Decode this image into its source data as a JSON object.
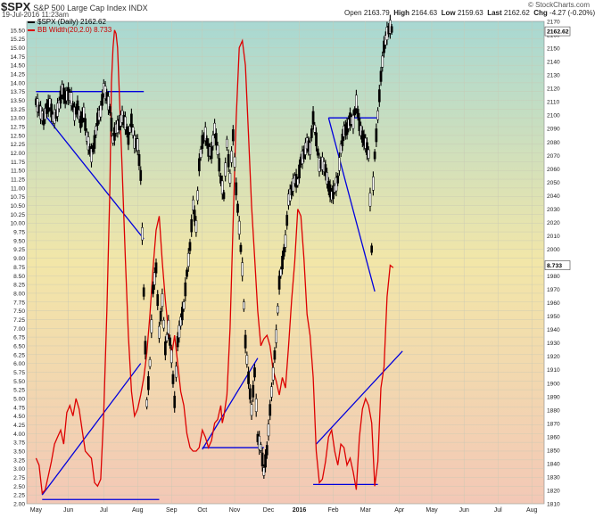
{
  "header": {
    "symbol": "$SPX",
    "name": "S&P 500 Large Cap Index",
    "exchange": "INDX",
    "datetime": "19-Jul-2016 11:23am",
    "open_label": "Open",
    "open": "2163.79",
    "high_label": "High",
    "high": "2164.63",
    "low_label": "Low",
    "low": "2159.63",
    "last_label": "Last",
    "last": "2162.62",
    "chg_label": "Chg",
    "chg": "-4.27 (-0.20%)",
    "watermark": "© StockCharts.com"
  },
  "colors": {
    "bg_top": "#a8d8d2",
    "bg_mid": "#f2e6a8",
    "bg_bottom": "#f3c8b6",
    "price": "#000000",
    "bbw": "#dd0000",
    "trend": "#0000dd",
    "grid": "#c8c8b4"
  },
  "chart_data": {
    "type": "line",
    "title": "$SPX S&P 500 Large Cap Index INDX",
    "series": [
      {
        "name": "$SPX (Daily) 2162.62",
        "axis": "right",
        "style": "ohlc-bars",
        "values": [
          [
            0,
            2110
          ],
          [
            3,
            2102
          ],
          [
            5,
            2097
          ],
          [
            7,
            2105
          ],
          [
            9,
            2109
          ],
          [
            11,
            2098
          ],
          [
            13,
            2100
          ],
          [
            15,
            2108
          ],
          [
            17,
            2119
          ],
          [
            19,
            2113
          ],
          [
            21,
            2116
          ],
          [
            23,
            2112
          ],
          [
            25,
            2101
          ],
          [
            27,
            2106
          ],
          [
            29,
            2095
          ],
          [
            31,
            2102
          ],
          [
            33,
            2084
          ],
          [
            35,
            2074
          ],
          [
            36,
            2070
          ],
          [
            38,
            2080
          ],
          [
            40,
            2097
          ],
          [
            42,
            2103
          ],
          [
            44,
            2120
          ],
          [
            46,
            2114
          ],
          [
            48,
            2104
          ],
          [
            50,
            2082
          ],
          [
            52,
            2090
          ],
          [
            54,
            2093
          ],
          [
            56,
            2099
          ],
          [
            58,
            2094
          ],
          [
            60,
            2083
          ],
          [
            62,
            2096
          ],
          [
            64,
            2080
          ],
          [
            66,
            2078
          ],
          [
            68,
            2055
          ],
          [
            70,
            1968
          ],
          [
            72,
            1885
          ],
          [
            74,
            1915
          ],
          [
            76,
            1970
          ],
          [
            78,
            1986
          ],
          [
            80,
            1938
          ],
          [
            82,
            1962
          ],
          [
            84,
            1926
          ],
          [
            86,
            1942
          ],
          [
            88,
            1920
          ],
          [
            90,
            1886
          ],
          [
            92,
            1931
          ],
          [
            94,
            1946
          ],
          [
            96,
            1958
          ],
          [
            98,
            1982
          ],
          [
            100,
            2002
          ],
          [
            102,
            2033
          ],
          [
            104,
            2017
          ],
          [
            106,
            2063
          ],
          [
            108,
            2080
          ],
          [
            110,
            2086
          ],
          [
            112,
            2074
          ],
          [
            114,
            2072
          ],
          [
            116,
            2090
          ],
          [
            118,
            2074
          ],
          [
            120,
            2052
          ],
          [
            122,
            2040
          ],
          [
            124,
            2079
          ],
          [
            126,
            2053
          ],
          [
            128,
            2085
          ],
          [
            130,
            2045
          ],
          [
            132,
            2016
          ],
          [
            134,
            1985
          ],
          [
            136,
            1931
          ],
          [
            138,
            1904
          ],
          [
            140,
            1880
          ],
          [
            142,
            1908
          ],
          [
            144,
            1859
          ],
          [
            146,
            1852
          ],
          [
            148,
            1834
          ],
          [
            150,
            1850
          ],
          [
            152,
            1880
          ],
          [
            154,
            1907
          ],
          [
            156,
            1935
          ],
          [
            158,
            1975
          ],
          [
            160,
            1990
          ],
          [
            162,
            2006
          ],
          [
            164,
            2037
          ],
          [
            166,
            2044
          ],
          [
            168,
            2052
          ],
          [
            170,
            2050
          ],
          [
            172,
            2066
          ],
          [
            174,
            2071
          ],
          [
            176,
            2079
          ],
          [
            178,
            2075
          ],
          [
            180,
            2098
          ],
          [
            182,
            2082
          ],
          [
            184,
            2063
          ],
          [
            186,
            2064
          ],
          [
            188,
            2059
          ],
          [
            190,
            2047
          ],
          [
            192,
            2040
          ],
          [
            194,
            2045
          ],
          [
            196,
            2052
          ],
          [
            198,
            2075
          ],
          [
            200,
            2088
          ],
          [
            202,
            2090
          ],
          [
            204,
            2097
          ],
          [
            206,
            2095
          ],
          [
            208,
            2110
          ],
          [
            210,
            2093
          ],
          [
            212,
            2084
          ],
          [
            214,
            2079
          ],
          [
            216,
            2071
          ],
          [
            217,
            2037
          ],
          [
            218,
            2000
          ],
          [
            219,
            2049
          ],
          [
            220,
            2070
          ],
          [
            222,
            2100
          ],
          [
            224,
            2129
          ],
          [
            226,
            2151
          ],
          [
            228,
            2161
          ],
          [
            230,
            2166
          ],
          [
            232,
            2162
          ]
        ]
      },
      {
        "name": "BB Width(20,2.0) 8.733",
        "axis": "left",
        "values": [
          [
            0,
            3.3
          ],
          [
            2,
            3.1
          ],
          [
            4,
            2.3
          ],
          [
            6,
            2.4
          ],
          [
            8,
            2.8
          ],
          [
            10,
            3.2
          ],
          [
            12,
            3.7
          ],
          [
            14,
            3.9
          ],
          [
            16,
            4.1
          ],
          [
            18,
            3.7
          ],
          [
            20,
            4.6
          ],
          [
            22,
            4.8
          ],
          [
            24,
            4.5
          ],
          [
            26,
            5.0
          ],
          [
            28,
            4.7
          ],
          [
            30,
            4.1
          ],
          [
            32,
            3.5
          ],
          [
            34,
            3.4
          ],
          [
            36,
            3.3
          ],
          [
            38,
            2.6
          ],
          [
            40,
            2.5
          ],
          [
            42,
            2.7
          ],
          [
            44,
            4.6
          ],
          [
            46,
            7.5
          ],
          [
            48,
            11.0
          ],
          [
            49,
            14.0
          ],
          [
            50,
            15.0
          ],
          [
            51,
            15.5
          ],
          [
            52,
            15.4
          ],
          [
            53,
            15.0
          ],
          [
            54,
            13.8
          ],
          [
            56,
            11.5
          ],
          [
            58,
            9.0
          ],
          [
            60,
            6.8
          ],
          [
            62,
            5.2
          ],
          [
            64,
            4.5
          ],
          [
            66,
            4.7
          ],
          [
            68,
            5.1
          ],
          [
            70,
            5.6
          ],
          [
            72,
            6.3
          ],
          [
            74,
            7.4
          ],
          [
            76,
            8.7
          ],
          [
            78,
            9.8
          ],
          [
            80,
            10.2
          ],
          [
            82,
            8.9
          ],
          [
            84,
            7.8
          ],
          [
            86,
            6.9
          ],
          [
            88,
            6.2
          ],
          [
            90,
            6.8
          ],
          [
            92,
            6.0
          ],
          [
            94,
            5.2
          ],
          [
            96,
            4.8
          ],
          [
            98,
            4.0
          ],
          [
            100,
            3.6
          ],
          [
            102,
            3.5
          ],
          [
            104,
            3.5
          ],
          [
            106,
            3.6
          ],
          [
            108,
            4.1
          ],
          [
            110,
            3.9
          ],
          [
            112,
            3.6
          ],
          [
            114,
            3.8
          ],
          [
            116,
            4.3
          ],
          [
            118,
            4.4
          ],
          [
            120,
            4.8
          ],
          [
            121,
            4.3
          ],
          [
            122,
            4.5
          ],
          [
            124,
            5.1
          ],
          [
            126,
            7.0
          ],
          [
            128,
            10.0
          ],
          [
            130,
            13.0
          ],
          [
            132,
            15.0
          ],
          [
            134,
            15.2
          ],
          [
            136,
            14.5
          ],
          [
            138,
            12.5
          ],
          [
            140,
            10.5
          ],
          [
            142,
            9.0
          ],
          [
            144,
            7.5
          ],
          [
            146,
            6.5
          ],
          [
            148,
            6.7
          ],
          [
            150,
            6.8
          ],
          [
            152,
            6.5
          ],
          [
            154,
            5.8
          ],
          [
            156,
            5.5
          ],
          [
            158,
            5.1
          ],
          [
            160,
            5.6
          ],
          [
            162,
            5.3
          ],
          [
            164,
            6.5
          ],
          [
            166,
            7.8
          ],
          [
            168,
            8.9
          ],
          [
            170,
            10.4
          ],
          [
            172,
            10.2
          ],
          [
            174,
            9.0
          ],
          [
            176,
            7.4
          ],
          [
            178,
            6.8
          ],
          [
            180,
            5.6
          ],
          [
            182,
            3.5
          ],
          [
            184,
            2.6
          ],
          [
            186,
            2.7
          ],
          [
            188,
            3.2
          ],
          [
            190,
            3.9
          ],
          [
            192,
            4.1
          ],
          [
            194,
            3.5
          ],
          [
            196,
            3.1
          ],
          [
            198,
            3.7
          ],
          [
            200,
            3.6
          ],
          [
            202,
            3.1
          ],
          [
            204,
            3.3
          ],
          [
            206,
            2.9
          ],
          [
            208,
            2.4
          ],
          [
            210,
            3.9
          ],
          [
            212,
            4.7
          ],
          [
            214,
            5.0
          ],
          [
            216,
            4.8
          ],
          [
            218,
            4.3
          ],
          [
            220,
            2.5
          ],
          [
            222,
            3.2
          ],
          [
            224,
            5.3
          ],
          [
            226,
            5.9
          ],
          [
            228,
            7.9
          ],
          [
            230,
            8.8
          ],
          [
            232,
            8.73
          ]
        ]
      }
    ],
    "trendlines": [
      {
        "x": [
          0,
          70
        ],
        "y": [
          13.4,
          9.55
        ],
        "axis": "left"
      },
      {
        "x": [
          0,
          70
        ],
        "y": [
          13.75,
          13.75
        ],
        "axis": "left"
      },
      {
        "x": [
          4,
          68
        ],
        "y": [
          2.25,
          6.0
        ],
        "axis": "left"
      },
      {
        "x": [
          4,
          80
        ],
        "y": [
          2.12,
          2.12
        ],
        "axis": "left"
      },
      {
        "x": [
          108,
          144
        ],
        "y": [
          3.55,
          6.15
        ],
        "axis": "left"
      },
      {
        "x": [
          108,
          148
        ],
        "y": [
          3.6,
          3.6
        ],
        "axis": "left"
      },
      {
        "x": [
          190,
          220
        ],
        "y": [
          13.0,
          8.05
        ],
        "axis": "left"
      },
      {
        "x": [
          190,
          222
        ],
        "y": [
          13.0,
          13.0
        ],
        "axis": "left"
      },
      {
        "x": [
          182,
          238
        ],
        "y": [
          3.7,
          6.35
        ],
        "axis": "left"
      },
      {
        "x": [
          180,
          222
        ],
        "y": [
          2.55,
          2.55
        ],
        "axis": "left"
      }
    ],
    "x_tick_labels": [
      "May",
      "Jun",
      "Jul",
      "Aug",
      "Sep",
      "Oct",
      "Nov",
      "Dec",
      "2016",
      "Feb",
      "Mar",
      "Apr",
      "May",
      "Jun",
      "Jul",
      "Aug"
    ],
    "x_tick_days": [
      0,
      21,
      44,
      66,
      88,
      108,
      129,
      151,
      171,
      193,
      214,
      236,
      257,
      278,
      300,
      322
    ],
    "left_axis": {
      "ylim": [
        2.0,
        15.75
      ],
      "ticks": [
        2.0,
        2.25,
        2.5,
        2.75,
        3.0,
        3.25,
        3.5,
        3.75,
        4.0,
        4.25,
        4.5,
        4.75,
        5.0,
        5.25,
        5.5,
        5.75,
        6.0,
        6.25,
        6.5,
        6.75,
        7.0,
        7.25,
        7.5,
        7.75,
        8.0,
        8.25,
        8.5,
        8.75,
        9.0,
        9.25,
        9.5,
        9.75,
        10.0,
        10.25,
        10.5,
        10.75,
        11.0,
        11.25,
        11.5,
        11.75,
        12.0,
        12.25,
        12.5,
        12.75,
        13.0,
        13.25,
        13.5,
        13.75,
        14.0,
        14.25,
        14.5,
        14.75,
        15.0,
        15.25,
        15.5
      ]
    },
    "right_axis": {
      "ylim": [
        1810,
        2170
      ],
      "ticks": [
        1810,
        1820,
        1830,
        1840,
        1850,
        1860,
        1870,
        1880,
        1890,
        1900,
        1910,
        1920,
        1930,
        1940,
        1950,
        1960,
        1970,
        1980,
        1990,
        2000,
        2010,
        2020,
        2030,
        2040,
        2050,
        2060,
        2070,
        2080,
        2090,
        2100,
        2110,
        2120,
        2130,
        2140,
        2150,
        2160,
        2170
      ]
    },
    "right_axis_tags": [
      {
        "value": 2162.62,
        "label": "2162.62"
      },
      {
        "value": 1988,
        "label": "8.733"
      }
    ],
    "grid": true,
    "legend": "top-left"
  }
}
